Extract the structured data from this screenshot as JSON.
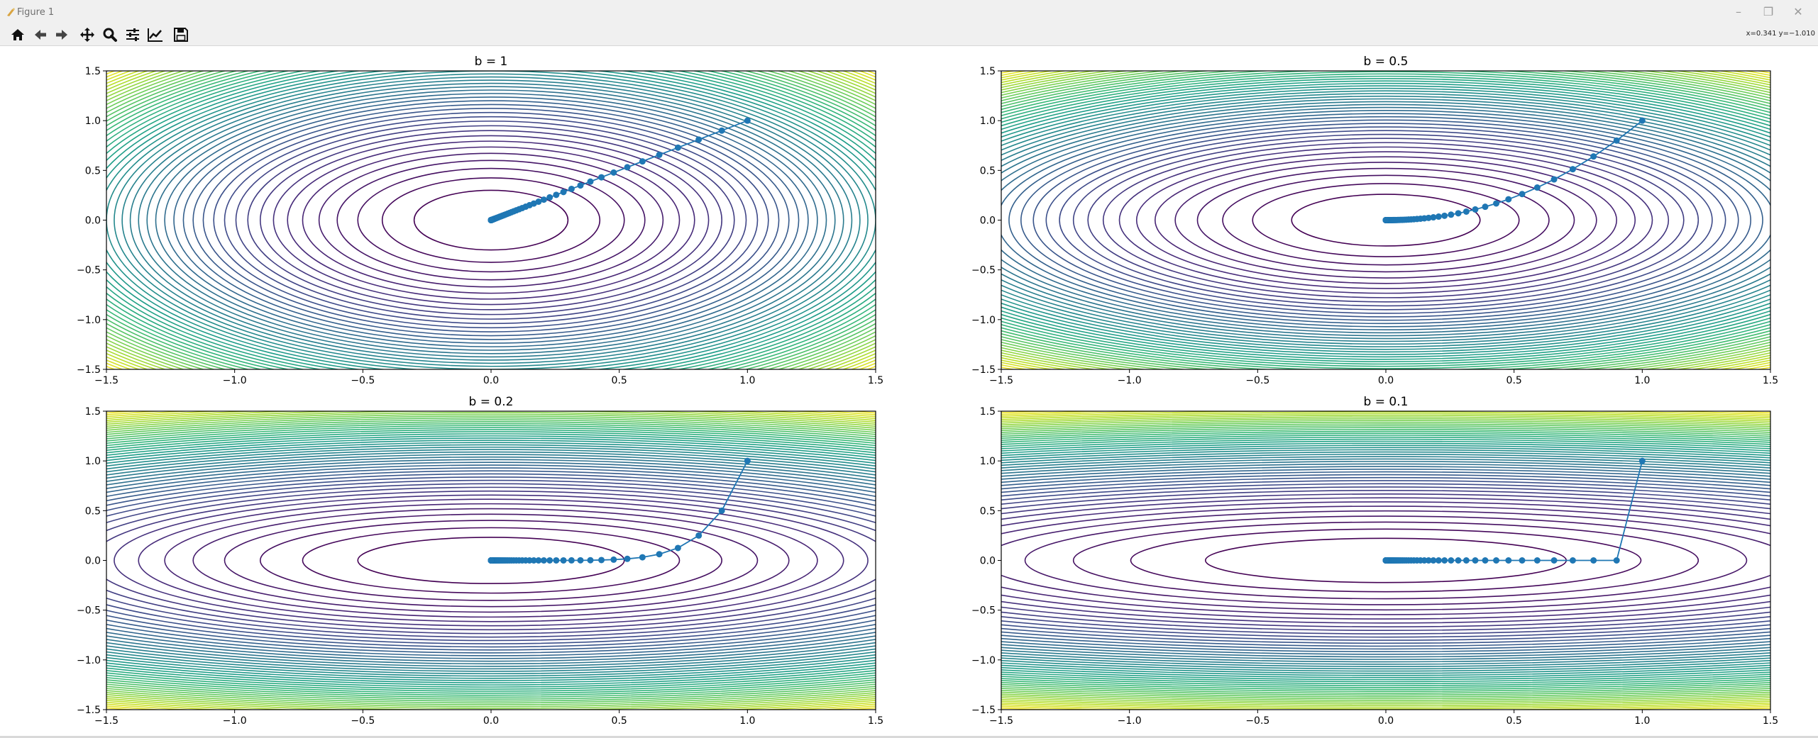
{
  "window": {
    "title": "Figure 1",
    "controls": [
      "minimize",
      "maximize",
      "close"
    ]
  },
  "toolbar": {
    "buttons": [
      {
        "name": "home",
        "icon": "home-icon"
      },
      {
        "name": "back",
        "icon": "arrow-left-icon"
      },
      {
        "name": "forward",
        "icon": "arrow-right-icon"
      },
      {
        "name": "pan",
        "icon": "move-arrows-icon"
      },
      {
        "name": "zoom",
        "icon": "magnifier-icon"
      },
      {
        "name": "configure-subplots",
        "icon": "sliders-icon"
      },
      {
        "name": "edit-axes",
        "icon": "line-chart-icon"
      },
      {
        "name": "save",
        "icon": "floppy-disk-icon"
      }
    ],
    "coordinates": "x=0.341 y=−1.010"
  },
  "chart_data": [
    {
      "type": "contour",
      "title": "b = 1",
      "b": 1,
      "xlim": [
        -1.5,
        1.5
      ],
      "ylim": [
        -1.5,
        1.5
      ],
      "xticks": [
        "−1.5",
        "−1.0",
        "−0.5",
        "0.0",
        "0.5",
        "1.0",
        "1.5"
      ],
      "yticks": [
        "−1.5",
        "−1.0",
        "−0.5",
        "0.0",
        "0.5",
        "1.0",
        "1.5"
      ],
      "contour_function": "x^2 + y^2 / b",
      "colormap": "viridis",
      "path": {
        "color": "#1f77b4",
        "x0": 1.0,
        "y0": 1.0,
        "learning_rate": 0.05,
        "steps": 100
      }
    },
    {
      "type": "contour",
      "title": "b = 0.5",
      "b": 0.5,
      "xlim": [
        -1.5,
        1.5
      ],
      "ylim": [
        -1.5,
        1.5
      ],
      "xticks": [
        "−1.5",
        "−1.0",
        "−0.5",
        "0.0",
        "0.5",
        "1.0",
        "1.5"
      ],
      "yticks": [
        "−1.5",
        "−1.0",
        "−0.5",
        "0.0",
        "0.5",
        "1.0",
        "1.5"
      ],
      "contour_function": "x^2 + y^2 / b",
      "colormap": "viridis",
      "path": {
        "color": "#1f77b4",
        "x0": 1.0,
        "y0": 1.0,
        "learning_rate": 0.05,
        "steps": 100
      }
    },
    {
      "type": "contour",
      "title": "b = 0.2",
      "b": 0.2,
      "xlim": [
        -1.5,
        1.5
      ],
      "ylim": [
        -1.5,
        1.5
      ],
      "xticks": [
        "−1.5",
        "−1.0",
        "−0.5",
        "0.0",
        "0.5",
        "1.0",
        "1.5"
      ],
      "yticks": [
        "−1.5",
        "−1.0",
        "−0.5",
        "0.0",
        "0.5",
        "1.0",
        "1.5"
      ],
      "contour_function": "x^2 + y^2 / b",
      "colormap": "viridis",
      "path": {
        "color": "#1f77b4",
        "x0": 1.0,
        "y0": 1.0,
        "learning_rate": 0.05,
        "steps": 100
      }
    },
    {
      "type": "contour",
      "title": "b = 0.1",
      "b": 0.1,
      "xlim": [
        -1.5,
        1.5
      ],
      "ylim": [
        -1.5,
        1.5
      ],
      "xticks": [
        "−1.5",
        "−1.0",
        "−0.5",
        "0.0",
        "0.5",
        "1.0",
        "1.5"
      ],
      "yticks": [
        "−1.5",
        "−1.0",
        "−0.5",
        "0.0",
        "0.5",
        "1.0",
        "1.5"
      ],
      "contour_function": "x^2 + y^2 / b",
      "colormap": "viridis",
      "path": {
        "color": "#1f77b4",
        "x0": 1.0,
        "y0": 1.0,
        "learning_rate": 0.05,
        "steps": 100
      }
    }
  ]
}
